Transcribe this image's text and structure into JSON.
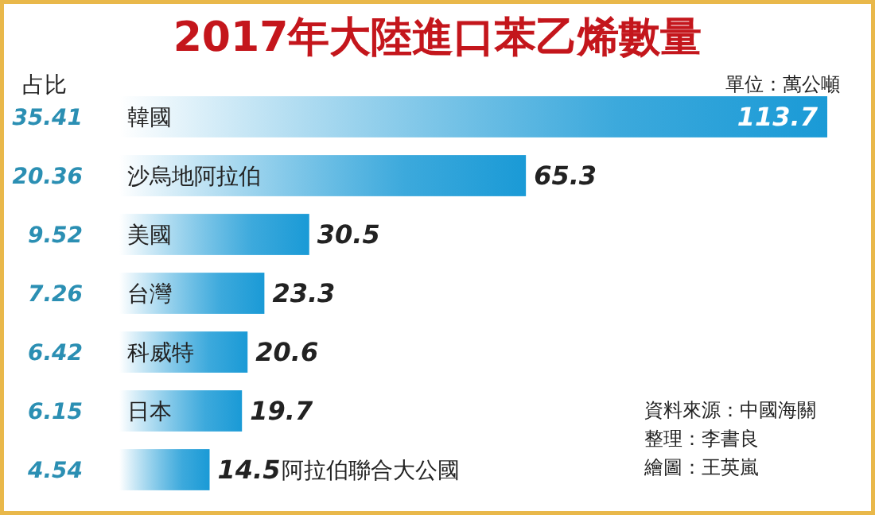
{
  "chart_data": {
    "type": "bar",
    "orientation": "horizontal",
    "title": "2017年大陸進口苯乙烯數量",
    "categories": [
      "韓國",
      "沙烏地阿拉伯",
      "美國",
      "台灣",
      "科威特",
      "日本",
      "阿拉伯聯合大公國"
    ],
    "values": [
      113.7,
      65.3,
      30.5,
      23.3,
      20.6,
      19.7,
      14.5
    ],
    "color": "#1a9ad6",
    "data_labels": true,
    "xlim": [
      0,
      113.7
    ],
    "annotations": [
      "占比",
      "35.41",
      "20.36",
      "9.52",
      "7.26",
      "6.42",
      "6.15",
      "4.54",
      "單位：萬公噸",
      "資料來源：中國海關",
      "整理：李書良",
      "繪圖：王英嵐"
    ]
  }
}
